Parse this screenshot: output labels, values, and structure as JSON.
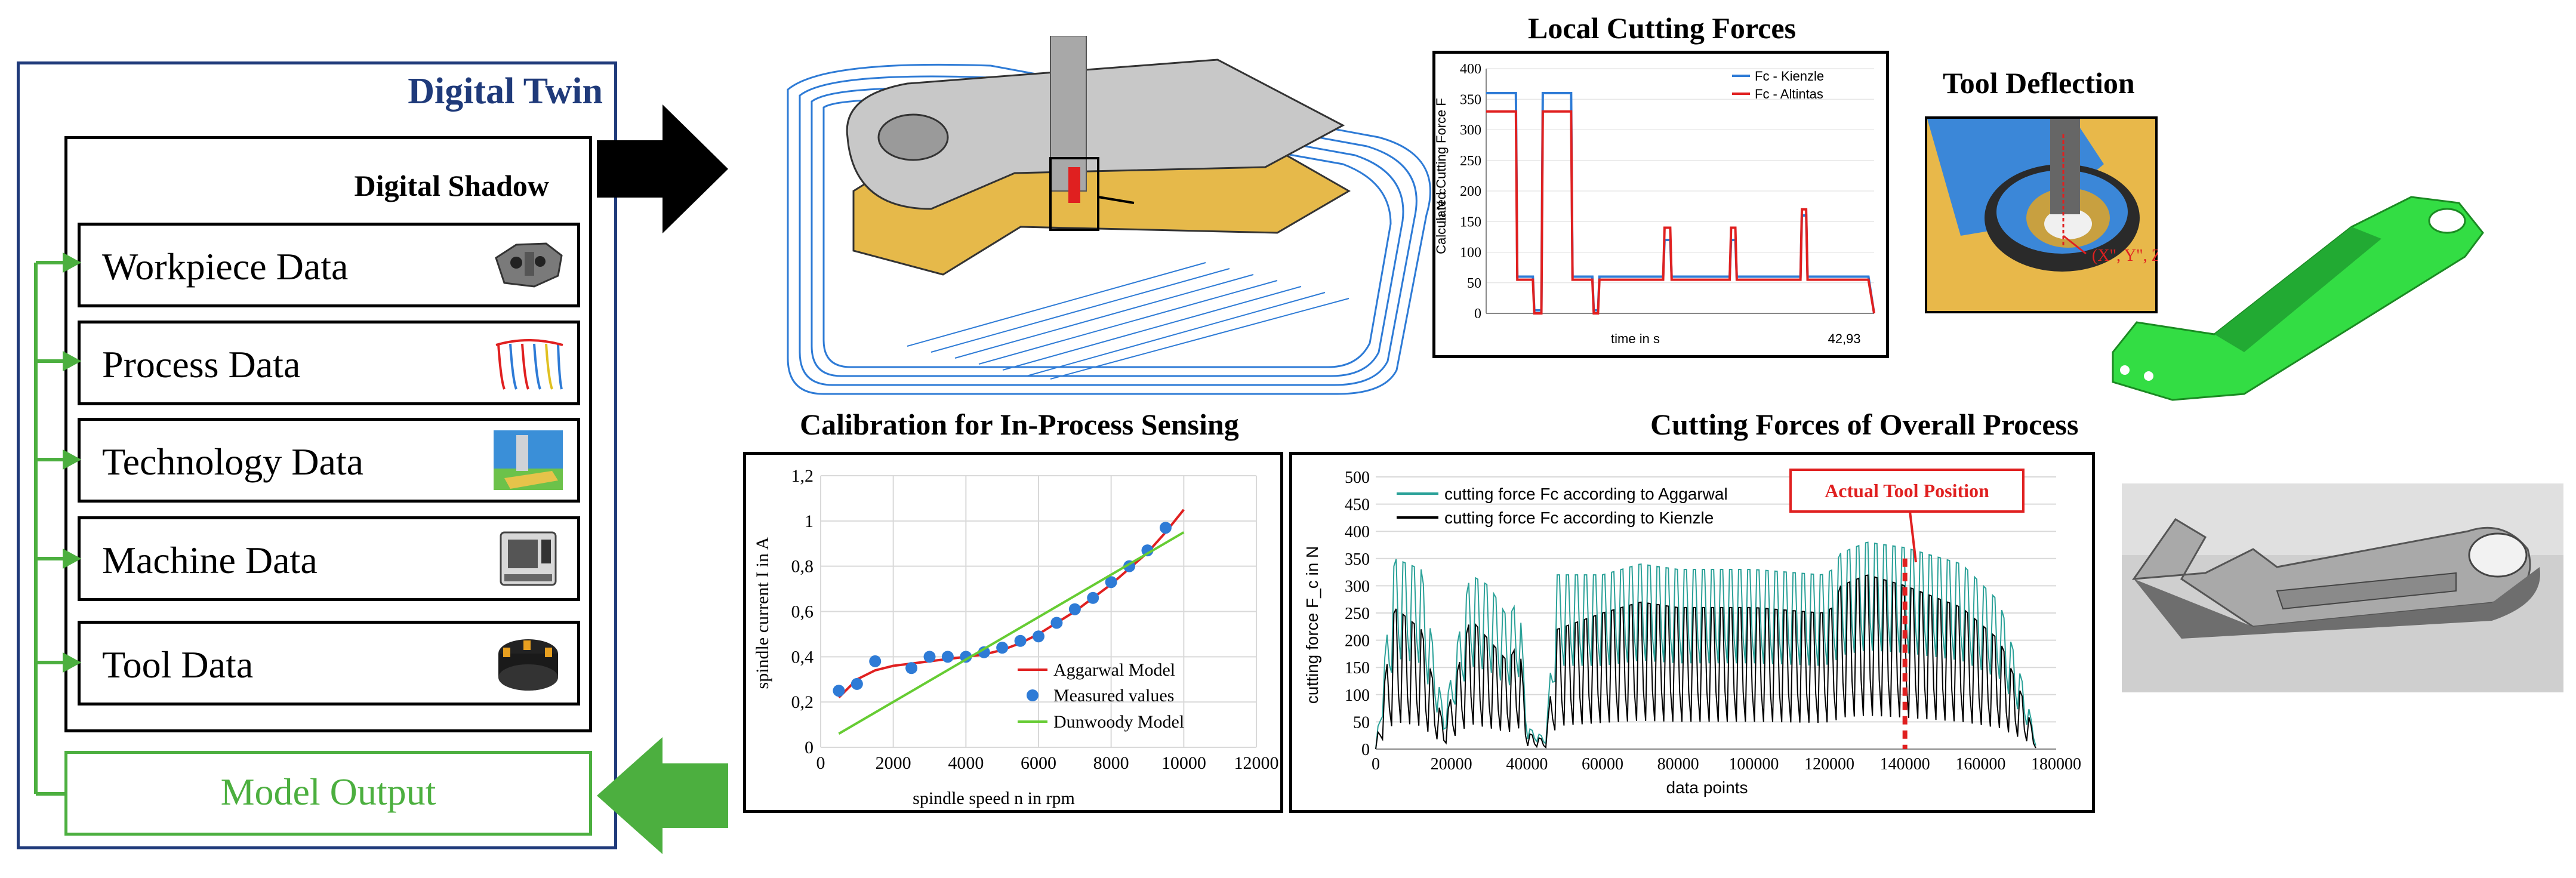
{
  "twin": {
    "title": "Digital Twin",
    "shadow_title": "Digital Shadow",
    "items": [
      {
        "label": "Workpiece Data",
        "icon": "workpiece-icon"
      },
      {
        "label": "Process Data",
        "icon": "process-icon"
      },
      {
        "label": "Technology Data",
        "icon": "technology-icon"
      },
      {
        "label": "Machine Data",
        "icon": "machine-icon"
      },
      {
        "label": "Tool Data",
        "icon": "tool-icon"
      }
    ],
    "model_output": "Model Output"
  },
  "titles": {
    "local": "Local Cutting Forces",
    "deflection": "Tool Deflection",
    "calibration": "Calibration for In-Process Sensing",
    "overall": "Cutting Forces of Overall Process"
  },
  "deflection_label": "(X\", Y\", Z\")",
  "colors": {
    "navy": "#1f3a7a",
    "green": "#4caf3f",
    "red": "#e02020",
    "teal": "#2aa198",
    "blue": "#2e7bd6"
  },
  "chart_data": [
    {
      "type": "line",
      "title": "Local Cutting Forces",
      "xlabel": "time in s",
      "x_end_label": "42,93",
      "ylabel": "Calculated Cutting Force F_c in N",
      "ylim": [
        0,
        400
      ],
      "yticks": [
        "0",
        "50",
        "100",
        "150",
        "200",
        "250",
        "300",
        "350",
        "400"
      ],
      "legend": [
        "Fc - Kienzle",
        "Fc - Altintas"
      ],
      "series": [
        {
          "name": "Fc - Kienzle",
          "color": "#2e7bd6",
          "x": [
            0,
            0.5,
            10.5,
            11,
            16.5,
            17,
            19.5,
            20,
            30,
            30.5,
            37.5,
            38,
            39.5,
            40,
            54,
            54.5,
            62.5,
            63,
            65,
            65.5,
            69,
            69.5,
            86,
            86.5,
            88,
            88.5,
            92,
            92.5,
            111,
            111.5,
            113,
            113.5,
            117,
            117.5,
            135,
            137
          ],
          "y": [
            360,
            360,
            360,
            60,
            60,
            5,
            5,
            360,
            360,
            60,
            60,
            5,
            5,
            60,
            60,
            60,
            60,
            120,
            120,
            60,
            60,
            60,
            60,
            120,
            120,
            60,
            60,
            60,
            60,
            160,
            160,
            60,
            60,
            60,
            60,
            0
          ]
        },
        {
          "name": "Fc - Altintas",
          "color": "#e02020",
          "x": [
            0,
            0.5,
            10.5,
            11,
            16.5,
            17,
            19.5,
            20,
            30,
            30.5,
            37.5,
            38,
            39.5,
            40,
            54,
            54.5,
            62.5,
            63,
            65,
            65.5,
            69,
            69.5,
            86,
            86.5,
            88,
            88.5,
            92,
            92.5,
            111,
            111.5,
            113,
            113.5,
            117,
            117.5,
            135,
            137
          ],
          "y": [
            330,
            330,
            330,
            55,
            55,
            0,
            0,
            330,
            330,
            55,
            55,
            0,
            0,
            55,
            55,
            55,
            55,
            140,
            140,
            55,
            55,
            55,
            55,
            140,
            140,
            55,
            55,
            55,
            55,
            170,
            170,
            55,
            55,
            55,
            55,
            0
          ]
        }
      ]
    },
    {
      "type": "scatter",
      "title": "Calibration for In-Process Sensing",
      "xlabel": "spindle speed n in rpm",
      "ylabel": "spindle current I in A",
      "xlim": [
        0,
        12000
      ],
      "ylim": [
        0,
        1.2
      ],
      "xticks": [
        "0",
        "2000",
        "4000",
        "6000",
        "8000",
        "10000",
        "12000"
      ],
      "yticks": [
        "0",
        "0,2",
        "0,4",
        "0,6",
        "0,8",
        "1",
        "1,2"
      ],
      "legend": [
        "Aggarwal Model",
        "Measured values",
        "Dunwoody Model"
      ],
      "series": [
        {
          "name": "Aggarwal Model",
          "color": "#e02020",
          "x": [
            500,
            1000,
            1500,
            2000,
            2500,
            3000,
            3500,
            4000,
            4500,
            5000,
            5500,
            6000,
            6500,
            7000,
            7500,
            8000,
            8500,
            9000,
            9500,
            10000
          ],
          "y": [
            0.22,
            0.3,
            0.34,
            0.36,
            0.37,
            0.38,
            0.39,
            0.4,
            0.41,
            0.43,
            0.46,
            0.5,
            0.55,
            0.6,
            0.66,
            0.72,
            0.79,
            0.86,
            0.95,
            1.05
          ]
        },
        {
          "name": "Measured values",
          "color": "#2e7bd6",
          "x": [
            500,
            1000,
            1500,
            2500,
            3000,
            3500,
            4000,
            4500,
            5000,
            5500,
            6000,
            6500,
            7000,
            7500,
            8000,
            8500,
            9000,
            9500
          ],
          "y": [
            0.25,
            0.28,
            0.38,
            0.35,
            0.4,
            0.4,
            0.4,
            0.42,
            0.44,
            0.47,
            0.49,
            0.55,
            0.61,
            0.66,
            0.73,
            0.8,
            0.87,
            0.97
          ]
        },
        {
          "name": "Dunwoody Model",
          "color": "#66cc33",
          "x": [
            500,
            10000
          ],
          "y": [
            0.06,
            0.95
          ]
        }
      ]
    },
    {
      "type": "line",
      "title": "Cutting Forces of Overall Process",
      "xlabel": "data points",
      "ylabel": "cutting force F_c in N",
      "xlim": [
        0,
        180000
      ],
      "ylim": [
        0,
        500
      ],
      "xticks": [
        "0",
        "20000",
        "40000",
        "60000",
        "80000",
        "100000",
        "120000",
        "140000",
        "160000",
        "180000"
      ],
      "yticks": [
        "0",
        "50",
        "100",
        "150",
        "200",
        "250",
        "300",
        "350",
        "400",
        "450",
        "500"
      ],
      "legend": [
        "cutting force Fc according to Aggarwal",
        "cutting force Fc according to Kienzle"
      ],
      "annotation": {
        "label": "Actual Tool Position",
        "x": 140000
      },
      "series": [
        {
          "name": "cutting force Fc according to Aggarwal",
          "color": "#2aa198",
          "envelope": [
            [
              0,
              0
            ],
            [
              5000,
              350
            ],
            [
              12000,
              330
            ],
            [
              18000,
              60
            ],
            [
              25000,
              320
            ],
            [
              30000,
              300
            ],
            [
              35000,
              240
            ],
            [
              38000,
              280
            ],
            [
              40000,
              40
            ],
            [
              45000,
              20
            ],
            [
              48000,
              320
            ],
            [
              60000,
              320
            ],
            [
              70000,
              340
            ],
            [
              80000,
              330
            ],
            [
              100000,
              330
            ],
            [
              118000,
              320
            ],
            [
              121000,
              330
            ],
            [
              123000,
              360
            ],
            [
              130000,
              380
            ],
            [
              140000,
              370
            ],
            [
              155000,
              340
            ],
            [
              165000,
              270
            ],
            [
              172000,
              100
            ],
            [
              175000,
              0
            ]
          ]
        },
        {
          "name": "cutting force Fc according to Kienzle",
          "color": "#000000",
          "envelope": [
            [
              0,
              0
            ],
            [
              5000,
              260
            ],
            [
              12000,
              220
            ],
            [
              18000,
              40
            ],
            [
              25000,
              240
            ],
            [
              30000,
              200
            ],
            [
              35000,
              160
            ],
            [
              38000,
              200
            ],
            [
              40000,
              30
            ],
            [
              45000,
              15
            ],
            [
              48000,
              220
            ],
            [
              60000,
              250
            ],
            [
              70000,
              270
            ],
            [
              80000,
              260
            ],
            [
              100000,
              260
            ],
            [
              118000,
              250
            ],
            [
              121000,
              260
            ],
            [
              123000,
              300
            ],
            [
              130000,
              320
            ],
            [
              140000,
              300
            ],
            [
              155000,
              260
            ],
            [
              165000,
              200
            ],
            [
              172000,
              80
            ],
            [
              175000,
              0
            ]
          ]
        }
      ]
    }
  ]
}
